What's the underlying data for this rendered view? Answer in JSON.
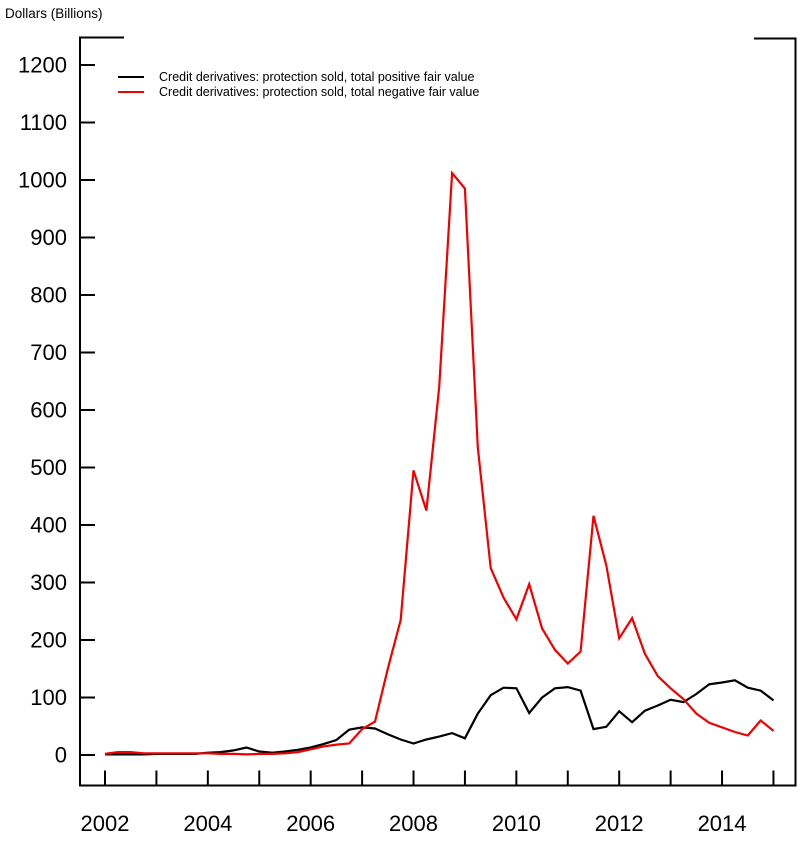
{
  "chart_title": "Dollars (Billions)",
  "colors": {
    "positive_series": "#000000",
    "negative_series": "#f00000",
    "axis": "#000000"
  },
  "legend": {
    "items": [
      {
        "label": "Credit derivatives: protection sold, total positive fair value",
        "color": "#000000"
      },
      {
        "label": "Credit derivatives: protection sold, total negative fair value",
        "color": "#f00000"
      }
    ]
  },
  "chart_data": {
    "type": "line",
    "title": "Dollars (Billions)",
    "ylabel": "Dollars (Billions)",
    "xlabel": "",
    "x_start": 2002.0,
    "x_step": 0.25,
    "x_frequency": "quarterly",
    "ylim": [
      0,
      1250
    ],
    "xlim": [
      2001.5,
      2015.5
    ],
    "grid": false,
    "legend_position": "top-left-inside",
    "y_tick_values": [
      0,
      100,
      200,
      300,
      400,
      500,
      600,
      700,
      800,
      900,
      1000,
      1100,
      1200
    ],
    "x_tick_years": [
      2002,
      2003,
      2004,
      2005,
      2006,
      2007,
      2008,
      2009,
      2010,
      2011,
      2012,
      2013,
      2014,
      2015
    ],
    "x_label_years": [
      2002,
      2004,
      2006,
      2008,
      2010,
      2012,
      2014
    ],
    "series": [
      {
        "name": "Credit derivatives: protection sold, total positive fair value",
        "color": "#000000",
        "values": [
          1,
          1,
          1,
          1,
          2,
          2,
          2,
          2,
          4,
          5,
          8,
          13,
          6,
          4,
          6,
          9,
          13,
          19,
          26,
          44,
          48,
          46,
          36,
          27,
          20,
          27,
          32,
          38,
          29,
          72,
          104,
          117,
          116,
          73,
          100,
          116,
          118,
          112,
          45,
          49,
          76,
          57,
          77,
          86,
          96,
          92,
          106,
          123,
          126,
          130,
          117,
          112,
          95
        ]
      },
      {
        "name": "Credit derivatives: protection sold, total negative fair value",
        "color": "#f00000",
        "values": [
          2,
          5,
          5,
          3,
          3,
          3,
          3,
          3,
          3,
          2,
          2,
          1,
          2,
          2,
          3,
          5,
          10,
          15,
          18,
          20,
          45,
          58,
          150,
          235,
          495,
          425,
          640,
          1012,
          985,
          535,
          325,
          274,
          236,
          297,
          220,
          183,
          159,
          180,
          416,
          330,
          203,
          238,
          176,
          137,
          116,
          97,
          72,
          56,
          48,
          40,
          34,
          60,
          42
        ]
      }
    ]
  }
}
